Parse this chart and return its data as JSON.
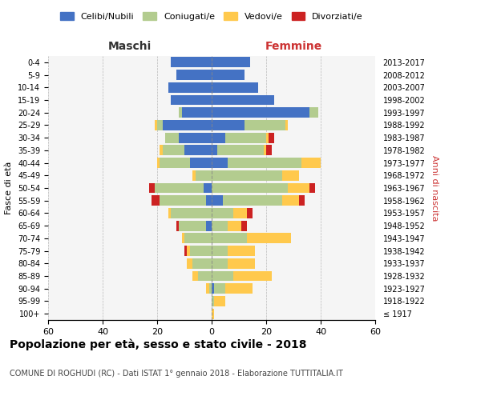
{
  "age_groups": [
    "100+",
    "95-99",
    "90-94",
    "85-89",
    "80-84",
    "75-79",
    "70-74",
    "65-69",
    "60-64",
    "55-59",
    "50-54",
    "45-49",
    "40-44",
    "35-39",
    "30-34",
    "25-29",
    "20-24",
    "15-19",
    "10-14",
    "5-9",
    "0-4"
  ],
  "birth_years": [
    "≤ 1917",
    "1918-1922",
    "1923-1927",
    "1928-1932",
    "1933-1937",
    "1938-1942",
    "1943-1947",
    "1948-1952",
    "1953-1957",
    "1958-1962",
    "1963-1967",
    "1968-1972",
    "1973-1977",
    "1978-1982",
    "1983-1987",
    "1988-1992",
    "1993-1997",
    "1998-2002",
    "2003-2007",
    "2008-2012",
    "2013-2017"
  ],
  "male": {
    "celibi": [
      0,
      0,
      0,
      0,
      0,
      0,
      0,
      2,
      0,
      2,
      3,
      0,
      8,
      10,
      12,
      18,
      11,
      15,
      16,
      13,
      15
    ],
    "coniugati": [
      0,
      0,
      1,
      5,
      7,
      8,
      10,
      10,
      15,
      17,
      18,
      6,
      11,
      8,
      5,
      2,
      1,
      0,
      0,
      0,
      0
    ],
    "vedovi": [
      0,
      0,
      1,
      2,
      2,
      1,
      1,
      0,
      1,
      0,
      0,
      1,
      1,
      1,
      0,
      1,
      0,
      0,
      0,
      0,
      0
    ],
    "divorziati": [
      0,
      0,
      0,
      0,
      0,
      1,
      0,
      1,
      0,
      3,
      2,
      0,
      0,
      0,
      0,
      0,
      0,
      0,
      0,
      0,
      0
    ]
  },
  "female": {
    "nubili": [
      0,
      0,
      1,
      0,
      0,
      0,
      0,
      0,
      0,
      4,
      0,
      0,
      6,
      2,
      5,
      12,
      36,
      23,
      17,
      12,
      14
    ],
    "coniugate": [
      0,
      1,
      4,
      8,
      6,
      6,
      13,
      6,
      8,
      22,
      28,
      26,
      27,
      17,
      15,
      15,
      3,
      0,
      0,
      0,
      0
    ],
    "vedove": [
      1,
      4,
      10,
      14,
      10,
      10,
      16,
      5,
      5,
      6,
      8,
      6,
      7,
      1,
      1,
      1,
      0,
      0,
      0,
      0,
      0
    ],
    "divorziate": [
      0,
      0,
      0,
      0,
      0,
      0,
      0,
      2,
      2,
      2,
      2,
      0,
      0,
      2,
      2,
      0,
      0,
      0,
      0,
      0,
      0
    ]
  },
  "colors": {
    "celibi": "#4472c4",
    "coniugati": "#b3cc8f",
    "vedovi": "#ffc94d",
    "divorziati": "#cc2222"
  },
  "xlim": 60,
  "title": "Popolazione per età, sesso e stato civile - 2018",
  "subtitle": "COMUNE DI ROGHUDI (RC) - Dati ISTAT 1° gennaio 2018 - Elaborazione TUTTITALIA.IT",
  "xlabel_left": "Maschi",
  "xlabel_right": "Femmine",
  "ylabel_left": "Fasce di età",
  "ylabel_right": "Anni di nascita",
  "legend_labels": [
    "Celibi/Nubili",
    "Coniugati/e",
    "Vedovi/e",
    "Divorziati/e"
  ],
  "bg_color": "#f5f5f5",
  "fig_bg": "#ffffff"
}
